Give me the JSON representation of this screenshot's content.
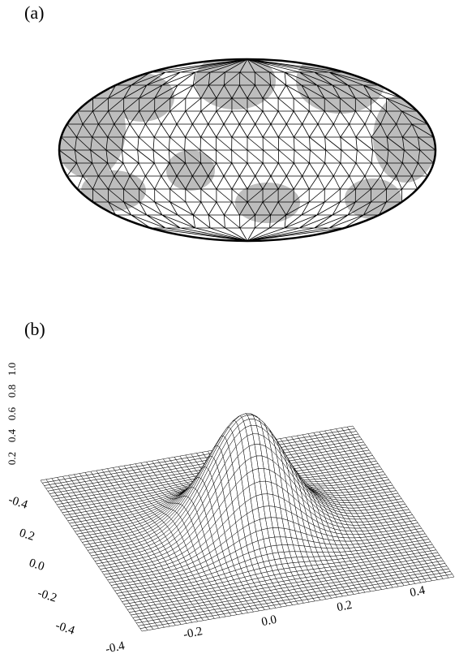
{
  "panels": [
    {
      "label": "(a)"
    },
    {
      "label": "(b)",
      "z_ticks": [
        "0.2",
        "0.4",
        "0.6",
        "0.8",
        "1.0"
      ],
      "y_ticks": [
        "-0.4",
        "0.2",
        "0.0",
        "-0.2",
        "-0.4"
      ],
      "x_ticks": [
        "-0.4",
        "-0.2",
        "0.0",
        "0.2",
        "0.4"
      ]
    }
  ]
}
